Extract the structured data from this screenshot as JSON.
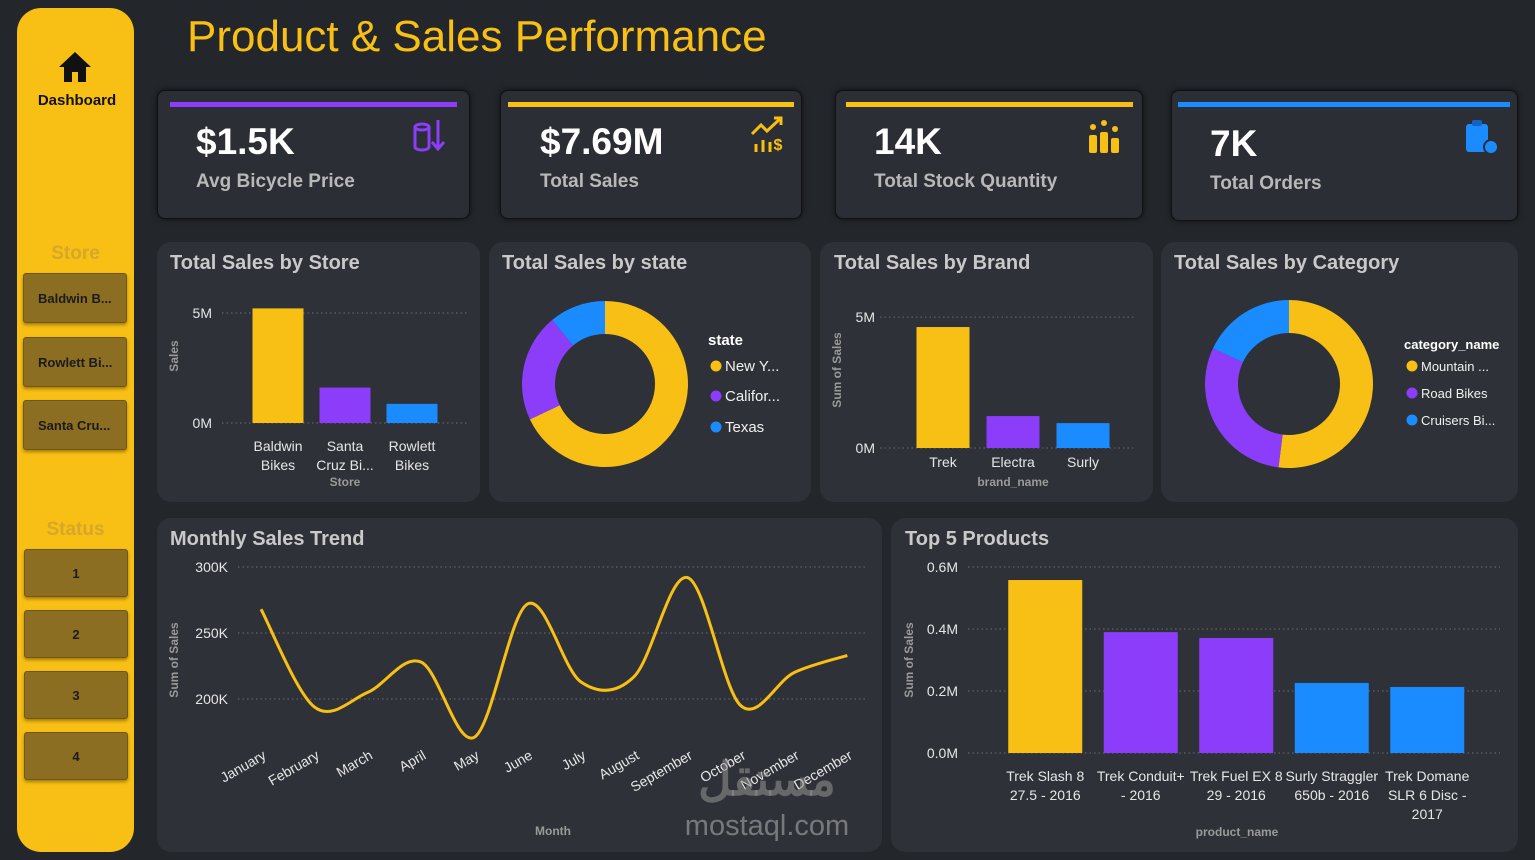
{
  "title": "Product & Sales Performance",
  "sidebar": {
    "nav": "Dashboard",
    "store_header": "Store",
    "stores": [
      "Baldwin B...",
      "Rowlett Bi...",
      "Santa Cru..."
    ],
    "status_header": "Status",
    "statuses": [
      "1",
      "2",
      "3",
      "4"
    ]
  },
  "kpis": [
    {
      "value": "$1.5K",
      "label": "Avg Bicycle Price",
      "color": "#8b3dfa"
    },
    {
      "value": "$7.69M",
      "label": "Total Sales",
      "color": "#f8bf14"
    },
    {
      "value": "14K",
      "label": "Total Stock Quantity",
      "color": "#f8bf14"
    },
    {
      "value": "7K",
      "label": "Total Orders",
      "color": "#1a8cff"
    }
  ],
  "watermark": {
    "logo": "مستقل",
    "url": "mostaql.com"
  },
  "chart_data": [
    {
      "type": "bar",
      "title": "Total Sales by Store",
      "categories": [
        "Baldwin Bikes",
        "Santa Cruz Bi...",
        "Rowlett Bikes"
      ],
      "values": [
        5210000,
        1610000,
        870000
      ],
      "colors": [
        "#f8bf14",
        "#8b3dfa",
        "#1a8cff"
      ],
      "ylim": [
        0,
        5500000
      ],
      "yticks": [
        {
          "value": 0,
          "label": "0M"
        },
        {
          "value": 5000000,
          "label": "5M"
        }
      ],
      "x_title": "Store",
      "y_title": "Sales",
      "grid": true
    },
    {
      "type": "donut",
      "title": "Total Sales by state",
      "legend_title": "state",
      "categories": [
        "New Y...",
        "Califor...",
        "Texas"
      ],
      "values": [
        68,
        21,
        11
      ],
      "colors": [
        "#f8bf14",
        "#8b3dfa",
        "#1a8cff"
      ]
    },
    {
      "type": "bar",
      "title": "Total Sales by Brand",
      "categories": [
        "Trek",
        "Electra",
        "Surly"
      ],
      "values": [
        4620000,
        1220000,
        950000
      ],
      "colors": [
        "#f8bf14",
        "#8b3dfa",
        "#1a8cff"
      ],
      "ylim": [
        0,
        5500000
      ],
      "yticks": [
        {
          "value": 0,
          "label": "0M"
        },
        {
          "value": 5000000,
          "label": "5M"
        }
      ],
      "x_title": "brand_name",
      "y_title": "Sum of Sales",
      "grid": true
    },
    {
      "type": "donut",
      "title": "Total Sales by Category",
      "legend_title": "category_name",
      "categories": [
        "Mountain ...",
        "Road Bikes",
        "Cruisers Bi..."
      ],
      "values": [
        52,
        30,
        18
      ],
      "colors": [
        "#f8bf14",
        "#8b3dfa",
        "#1a8cff"
      ]
    },
    {
      "type": "line",
      "title": "Monthly Sales Trend",
      "categories": [
        "January",
        "February",
        "March",
        "April",
        "May",
        "June",
        "July",
        "August",
        "September",
        "October",
        "November",
        "December"
      ],
      "values": [
        268000,
        194000,
        205000,
        228000,
        171000,
        272000,
        213000,
        217000,
        292000,
        195000,
        220000,
        233000
      ],
      "color": "#f8bf14",
      "ylim": [
        165000,
        305000
      ],
      "yticks": [
        {
          "value": 200000,
          "label": "200K"
        },
        {
          "value": 250000,
          "label": "250K"
        },
        {
          "value": 300000,
          "label": "300K"
        }
      ],
      "x_title": "Month",
      "y_title": "Sum of Sales",
      "grid": true
    },
    {
      "type": "bar",
      "title": "Top 5 Products",
      "categories": [
        "Trek Slash 8 27.5 - 2016",
        "Trek Conduit+ - 2016",
        "Trek Fuel EX 8 29 - 2016",
        "Surly Straggler 650b - 2016",
        "Trek Domane SLR 6 Disc - 2017"
      ],
      "values": [
        558000,
        390000,
        371000,
        226000,
        213000
      ],
      "colors": [
        "#f8bf14",
        "#8b3dfa",
        "#8b3dfa",
        "#1a8cff",
        "#1a8cff"
      ],
      "ylim": [
        0,
        650000
      ],
      "yticks": [
        {
          "value": 0,
          "label": "0.0M"
        },
        {
          "value": 200000,
          "label": "0.2M"
        },
        {
          "value": 400000,
          "label": "0.4M"
        },
        {
          "value": 600000,
          "label": "0.6M"
        }
      ],
      "x_title": "product_name",
      "y_title": "Sum of Sales",
      "grid": true
    }
  ]
}
